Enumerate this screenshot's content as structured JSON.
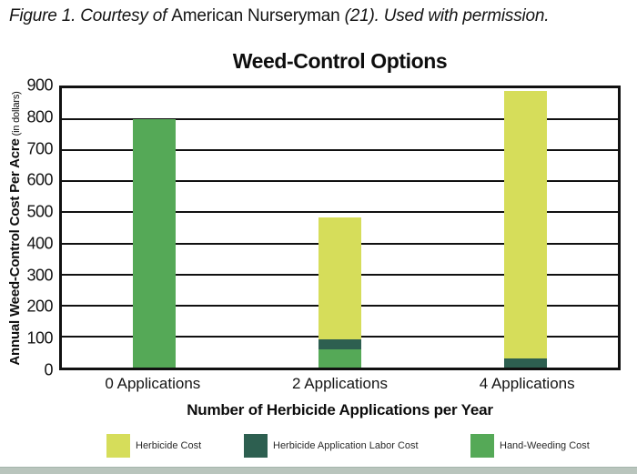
{
  "caption": {
    "lead": "Figure 1. Courtesy of ",
    "source": "American Nurseryman",
    "tail": " (21). Used with permission."
  },
  "chart": {
    "y_axis_title": "Annual Weed-Control Cost Per Acre",
    "y_axis_unit": "(in dollars)"
  },
  "chart_data": {
    "type": "bar",
    "stacked": true,
    "title": "Weed-Control Options",
    "xlabel": "Number of Herbicide Applications per Year",
    "ylabel": "Annual Weed-Control Cost Per Acre (in dollars)",
    "categories": [
      "0 Applications",
      "2 Applications",
      "4 Applications"
    ],
    "series": [
      {
        "name": "Hand-Weeding Cost",
        "color": "#55a957",
        "values": [
          800,
          60,
          0
        ]
      },
      {
        "name": "Herbicide Application Labor Cost",
        "color": "#2d5f50",
        "values": [
          0,
          30,
          30
        ]
      },
      {
        "name": "Herbicide Cost",
        "color": "#d6dd5a",
        "values": [
          0,
          395,
          860
        ]
      }
    ],
    "totals": [
      800,
      485,
      890
    ],
    "ylim": [
      0,
      900
    ],
    "yticks": [
      0,
      100,
      200,
      300,
      400,
      500,
      600,
      700,
      800,
      900
    ],
    "grid": true,
    "legend_position": "bottom",
    "legend_order": [
      "Herbicide Cost",
      "Herbicide Application Labor Cost",
      "Hand-Weeding Cost"
    ]
  }
}
